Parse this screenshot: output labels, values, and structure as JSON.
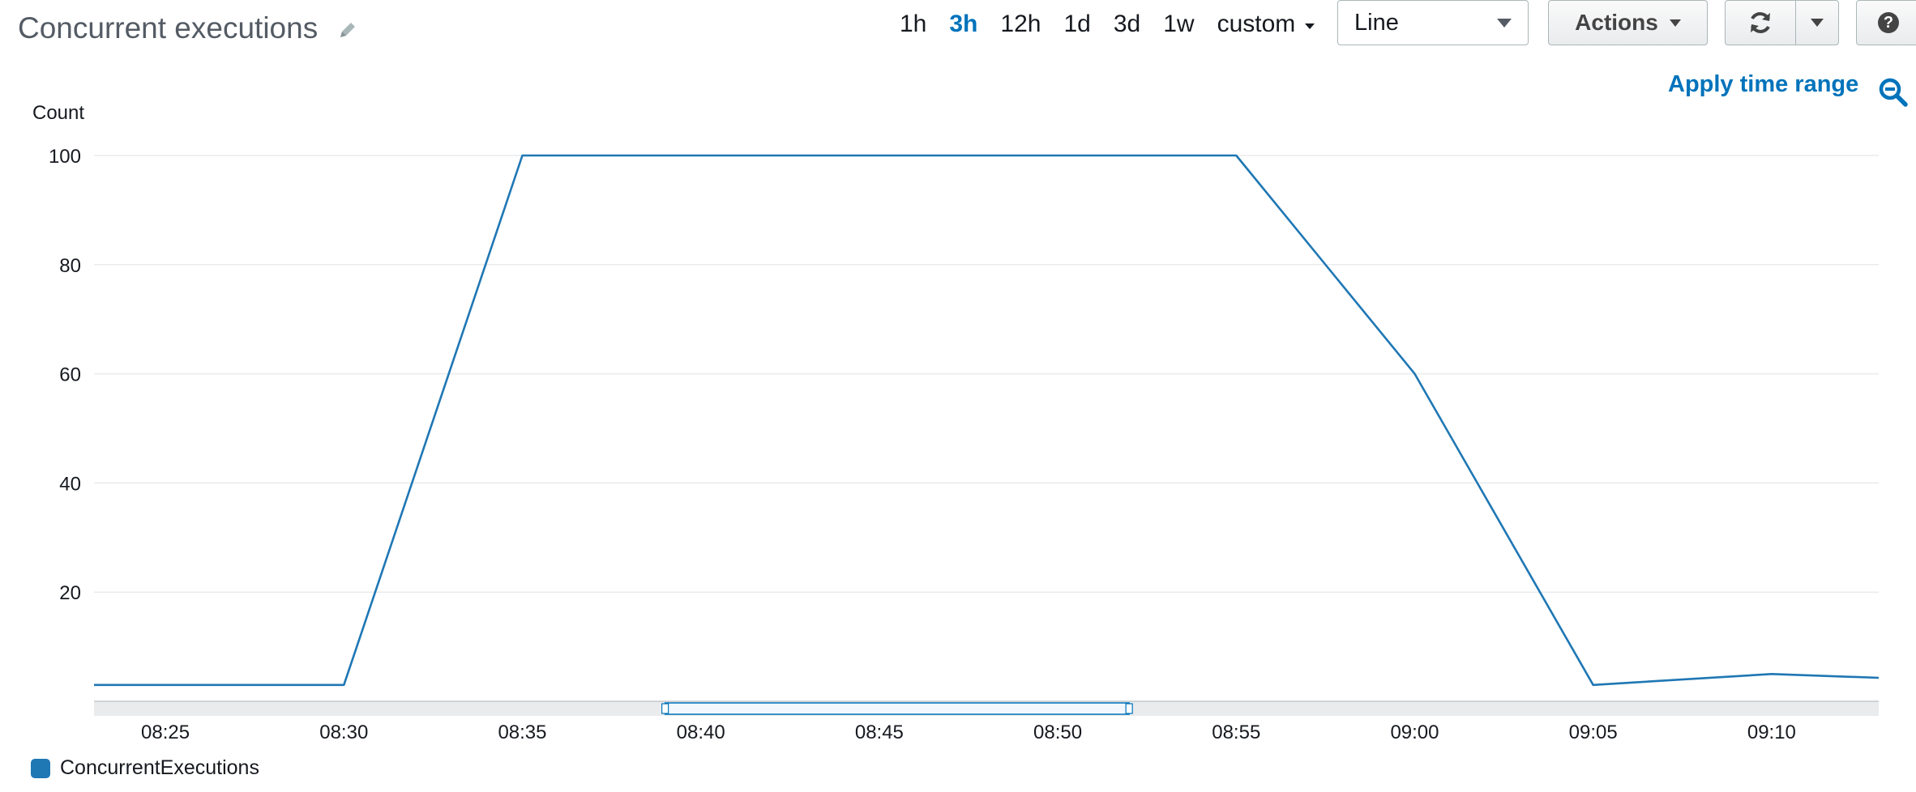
{
  "widget": {
    "title": "Concurrent executions",
    "time_ranges": [
      {
        "label": "1h",
        "active": false
      },
      {
        "label": "3h",
        "active": true
      },
      {
        "label": "12h",
        "active": false
      },
      {
        "label": "1d",
        "active": false
      },
      {
        "label": "3d",
        "active": false
      },
      {
        "label": "1w",
        "active": false
      }
    ],
    "custom_label": "custom",
    "chart_type_select": "Line",
    "actions_label": "Actions",
    "help_glyph": "?",
    "apply_time_range_label": "Apply time range",
    "icons": [
      "pencil-icon",
      "refresh-icon",
      "chevron-down-icon",
      "help-icon",
      "zoom-out-icon"
    ],
    "accent_color": "#0073bb"
  },
  "chart_data": {
    "type": "line",
    "ylabel": "Count",
    "xlabel": "",
    "ylim": [
      0,
      100
    ],
    "yticks": [
      20,
      40,
      60,
      80,
      100
    ],
    "xlim": [
      "08:23",
      "09:13"
    ],
    "xticks": [
      "08:25",
      "08:30",
      "08:35",
      "08:40",
      "08:45",
      "08:50",
      "08:55",
      "09:00",
      "09:05",
      "09:10"
    ],
    "grid": true,
    "legend_position": "bottom-left",
    "series": [
      {
        "name": "ConcurrentExecutions",
        "color": "#1f77b4",
        "points": [
          {
            "x": "08:23",
            "y": 3
          },
          {
            "x": "08:30",
            "y": 3
          },
          {
            "x": "08:35",
            "y": 100
          },
          {
            "x": "08:55",
            "y": 100
          },
          {
            "x": "09:00",
            "y": 60
          },
          {
            "x": "09:05",
            "y": 3
          },
          {
            "x": "09:10",
            "y": 5
          },
          {
            "x": "09:13",
            "y": 4.3
          }
        ]
      }
    ],
    "brush_range": [
      "08:39",
      "08:52"
    ]
  }
}
